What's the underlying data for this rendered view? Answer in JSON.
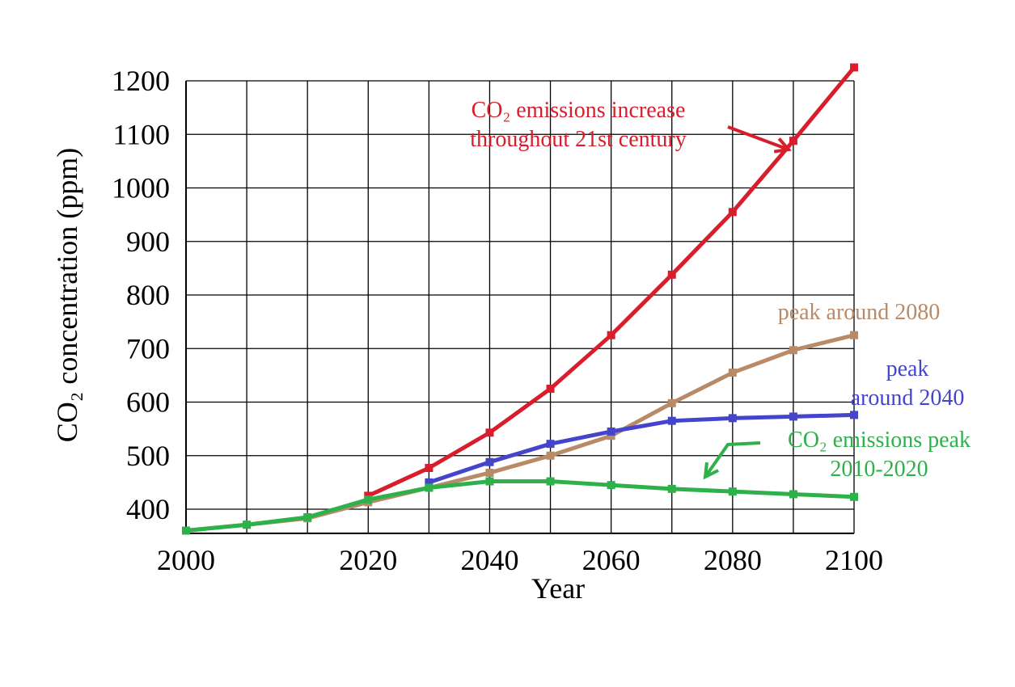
{
  "chart_data": {
    "type": "line",
    "y_label": "CO₂ concentration (ppm)",
    "x_label": "Year",
    "categories": [
      "2000",
      null,
      null,
      "2020",
      null,
      "2040",
      null,
      "2060",
      null,
      "2080",
      null,
      "2100"
    ],
    "ylim": [
      355,
      1230
    ],
    "yticks": [
      400,
      500,
      600,
      700,
      800,
      900,
      1000,
      1100,
      1200
    ],
    "grid": true,
    "series": [
      {
        "name": "CO₂ emissions increase throughout 21st century",
        "color": "#d81e2c",
        "values": [
          null,
          null,
          null,
          425,
          477,
          543,
          625,
          725,
          838,
          955,
          1088,
          1225
        ]
      },
      {
        "name": "peak around 2080",
        "color": "#b98a68",
        "values": [
          360,
          371,
          383,
          413,
          440,
          468,
          500,
          537,
          598,
          655,
          697,
          725
        ]
      },
      {
        "name": "peak around 2040",
        "color": "#4545cc",
        "values": [
          null,
          null,
          null,
          null,
          450,
          488,
          522,
          545,
          565,
          570,
          573,
          576
        ]
      },
      {
        "name": "CO₂ emissions peak 2010-2020",
        "color": "#2eb04a",
        "values": [
          360,
          371,
          385,
          418,
          440,
          452,
          452,
          445,
          438,
          433,
          428,
          423
        ]
      }
    ],
    "annotations": [
      {
        "lines": [
          "CO₂ emissions increase",
          "throughout 21st century"
        ],
        "color": "#d81e2c"
      },
      {
        "lines": [
          "peak around 2080"
        ],
        "color": "#b98a68"
      },
      {
        "lines": [
          "peak",
          "around 2040"
        ],
        "color": "#4545cc"
      },
      {
        "lines": [
          "CO₂ emissions peak",
          "2010-2020"
        ],
        "color": "#2eb04a"
      }
    ]
  }
}
